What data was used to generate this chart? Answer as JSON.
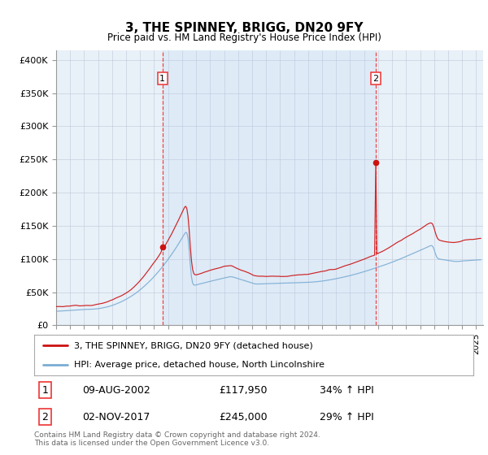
{
  "title": "3, THE SPINNEY, BRIGG, DN20 9FY",
  "subtitle": "Price paid vs. HM Land Registry's House Price Index (HPI)",
  "ylabel_ticks": [
    "£0",
    "£50K",
    "£100K",
    "£150K",
    "£200K",
    "£250K",
    "£300K",
    "£350K",
    "£400K"
  ],
  "ytick_values": [
    0,
    50000,
    100000,
    150000,
    200000,
    250000,
    300000,
    350000,
    400000
  ],
  "ylim": [
    0,
    415000
  ],
  "xlim_start": 1995.0,
  "xlim_end": 2025.5,
  "transaction1_date": 2002.6,
  "transaction1_price": 117950,
  "transaction2_date": 2017.83,
  "transaction2_price": 245000,
  "hpi_color": "#7aadd4",
  "price_color": "#cc1111",
  "vline_color": "#ee3333",
  "plot_bg": "#e8f0f8",
  "legend_label1": "3, THE SPINNEY, BRIGG, DN20 9FY (detached house)",
  "legend_label2": "HPI: Average price, detached house, North Lincolnshire",
  "footer": "Contains HM Land Registry data © Crown copyright and database right 2024.\nThis data is licensed under the Open Government Licence v3.0.",
  "table_row1_num": "1",
  "table_row1_date": "09-AUG-2002",
  "table_row1_price": "£117,950",
  "table_row1_hpi": "34% ↑ HPI",
  "table_row2_num": "2",
  "table_row2_date": "02-NOV-2017",
  "table_row2_price": "£245,000",
  "table_row2_hpi": "29% ↑ HPI"
}
